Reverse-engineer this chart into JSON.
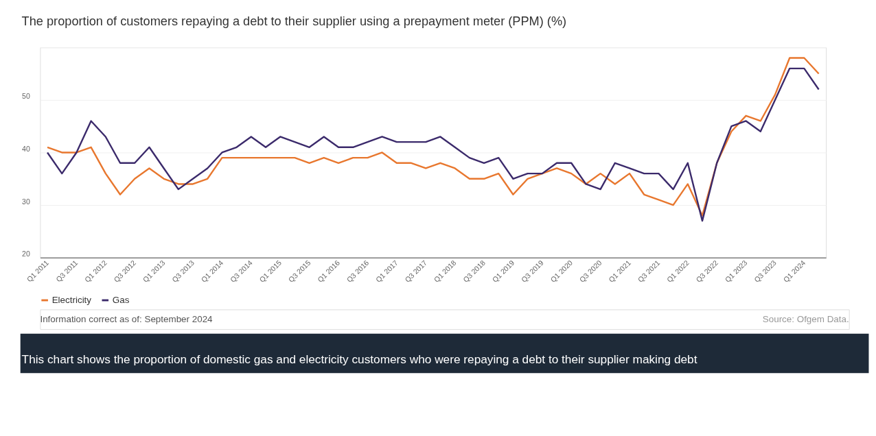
{
  "chart_data": {
    "type": "line",
    "title": "The proportion of customers repaying a debt to their supplier using a prepayment meter (PPM) (%)",
    "categories": [
      "Q1 2011",
      null,
      "Q3 2011",
      null,
      "Q1 2012",
      null,
      "Q3 2012",
      null,
      "Q1 2013",
      null,
      "Q3 2013",
      null,
      "Q1 2014",
      null,
      "Q3 2014",
      null,
      "Q1 2015",
      null,
      "Q3 2015",
      null,
      "Q1 2016",
      null,
      "Q3 2016",
      null,
      "Q1 2017",
      null,
      "Q3 2017",
      null,
      "Q1 2018",
      null,
      "Q3 2018",
      null,
      "Q1 2019",
      null,
      "Q3 2019",
      null,
      "Q1 2020",
      null,
      "Q3 2020",
      null,
      "Q1 2021",
      null,
      "Q3 2021",
      null,
      "Q1 2022",
      null,
      "Q3 2022",
      null,
      "Q1 2023",
      null,
      "Q3 2023",
      null,
      "Q1 2024",
      null
    ],
    "series": [
      {
        "name": "Electricity",
        "color": "#e8772e",
        "values": [
          41,
          40,
          40,
          41,
          36,
          32,
          35,
          37,
          35,
          34,
          34,
          35,
          39,
          39,
          39,
          39,
          39,
          39,
          38,
          39,
          38,
          39,
          39,
          40,
          38,
          38,
          37,
          38,
          37,
          35,
          35,
          36,
          32,
          35,
          36,
          37,
          36,
          34,
          36,
          34,
          36,
          32,
          31,
          30,
          34,
          28,
          38,
          44,
          47,
          46,
          51,
          58,
          58,
          55
        ]
      },
      {
        "name": "Gas",
        "color": "#3b2a6b",
        "values": [
          40,
          36,
          40,
          46,
          43,
          38,
          38,
          41,
          37,
          33,
          35,
          37,
          40,
          41,
          43,
          41,
          43,
          42,
          41,
          43,
          41,
          41,
          42,
          43,
          42,
          42,
          42,
          43,
          41,
          39,
          38,
          39,
          35,
          36,
          36,
          38,
          38,
          34,
          33,
          38,
          37,
          36,
          36,
          33,
          38,
          27,
          38,
          45,
          46,
          44,
          50,
          56,
          56,
          52
        ]
      }
    ],
    "ylim": [
      20,
      60
    ],
    "yticks": [
      20,
      30,
      40,
      50,
      {
        "value": 60,
        "label": null
      }
    ],
    "grid": "y",
    "legend": "bottom",
    "marker": "none",
    "line_style": "solid",
    "annotations": [
      "Information correct as of: September 2024",
      "Source: Ofgem Data.",
      "This chart shows the proportion of domestic gas and electricity customers who were repaying a debt to their supplier making debt"
    ]
  }
}
